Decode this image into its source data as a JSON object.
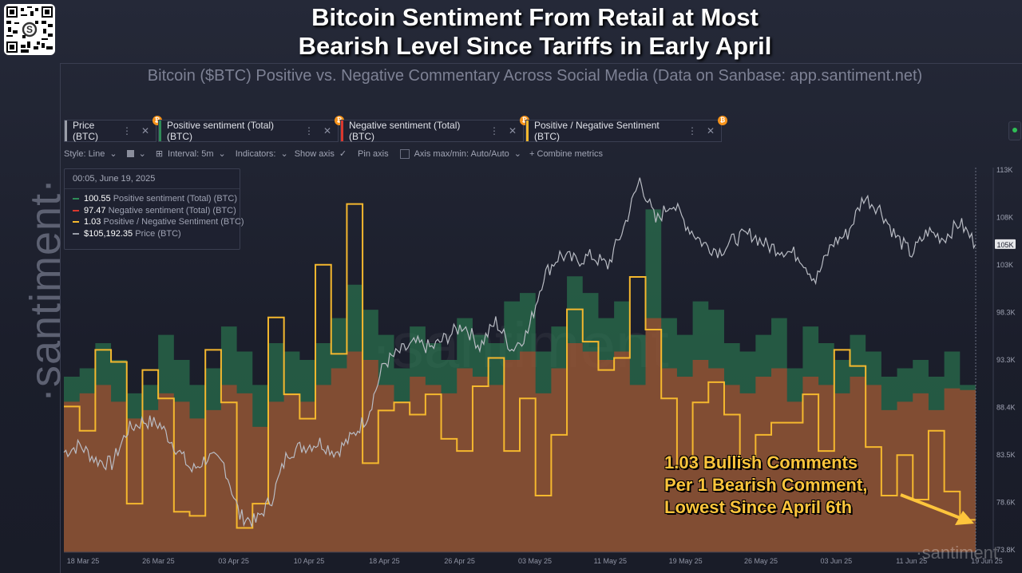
{
  "header": {
    "title_line1": "Bitcoin Sentiment From Retail at Most",
    "title_line2": "Bearish Level Since Tariffs in Early April",
    "subtitle": "Bitcoin ($BTC) Positive vs. Negative Commentary Across Social Media (Data on Sanbase: app.santiment.net)"
  },
  "brand": {
    "side_logo": "·santiment·",
    "watermark": "·santiment"
  },
  "tabs": [
    {
      "label": "Price (BTC)",
      "color": "#9a9ea8"
    },
    {
      "label": "Positive sentiment (Total) (BTC)",
      "color": "#2e8b57"
    },
    {
      "label": "Negative sentiment (Total) (BTC)",
      "color": "#d9382e"
    },
    {
      "label": "Positive / Negative Sentiment (BTC)",
      "color": "#f5b82e"
    }
  ],
  "tab_icons": {
    "menu": "⋮",
    "close": "✕",
    "badge": "₿"
  },
  "toolbar": {
    "style": "Style: Line",
    "interval": "Interval: 5m",
    "indicators": "Indicators:",
    "show_axis": "Show axis",
    "pin_axis": "Pin axis",
    "axis_maxmin": "Axis max/min: Auto/Auto",
    "combine": "+  Combine metrics"
  },
  "tooltip": {
    "date": "00:05, June 19, 2025",
    "rows": [
      {
        "value": "100.55",
        "label": "Positive sentiment (Total) (BTC)",
        "color": "#2e8b57"
      },
      {
        "value": "97.47",
        "label": "Negative sentiment (Total) (BTC)",
        "color": "#d9382e"
      },
      {
        "value": "1.03",
        "label": "Positive / Negative Sentiment (BTC)",
        "color": "#f5b82e"
      },
      {
        "value": "$105,192.35",
        "label": "Price (BTC)",
        "color": "#9a9ea8"
      }
    ]
  },
  "annotation": {
    "line1": "1.03 Bullish Comments",
    "line2": "Per 1 Bearish Comment,",
    "line3": "Lowest Since April 6th"
  },
  "colors": {
    "positive": "#2e8b57",
    "negative": "#c0462a",
    "ratio": "#f5b82e",
    "price": "#b9bcc4",
    "annotation": "#fec53c"
  },
  "chart_data": {
    "type": "line",
    "x_ticks": [
      "18 Mar 25",
      "26 Mar 25",
      "03 Apr 25",
      "10 Apr 25",
      "18 Apr 25",
      "26 Apr 25",
      "03 May 25",
      "11 May 25",
      "19 May 25",
      "26 May 25",
      "03 Jun 25",
      "11 Jun 25",
      "19 Jun 25"
    ],
    "y_ticks": [
      "113K",
      "108K",
      "103K",
      "98.3K",
      "93.3K",
      "88.4K",
      "83.5K",
      "78.6K",
      "73.8K"
    ],
    "current_price_label": "105K",
    "ylim": [
      73800,
      113000
    ],
    "series": [
      {
        "name": "Price (BTC)",
        "values": [
          84000,
          84700,
          83200,
          82800,
          86300,
          87200,
          86800,
          84500,
          82100,
          83500,
          82800,
          77500,
          76900,
          79300,
          84000,
          84600,
          85000,
          84000,
          85500,
          87800,
          93000,
          94200,
          95100,
          94600,
          95800,
          97000,
          94800,
          97300,
          94500,
          96200,
          102000,
          104100,
          103500,
          104000,
          103000,
          106900,
          111800,
          107500,
          109500,
          107000,
          105200,
          104500,
          105800,
          106200,
          105000,
          104600,
          104000,
          101500,
          105200,
          106300,
          110000,
          108800,
          106000,
          104200,
          106500,
          105800,
          107400,
          105200
        ]
      },
      {
        "name": "Positive sentiment (Total) (BTC)",
        "values": [
          105,
          110,
          125,
          115,
          95,
          100,
          130,
          115,
          100,
          110,
          135,
          120,
          100,
          125,
          120,
          115,
          125,
          140,
          160,
          145,
          130,
          110,
          135,
          125,
          115,
          140,
          130,
          125,
          150,
          155,
          120,
          135,
          165,
          155,
          140,
          150,
          130,
          205,
          140,
          130,
          150,
          145,
          125,
          120,
          130,
          140,
          110,
          135,
          125,
          115,
          130,
          120,
          105,
          110,
          115,
          105,
          120,
          100
        ]
      },
      {
        "name": "Negative sentiment (Total) (BTC)",
        "values": [
          90,
          95,
          100,
          90,
          80,
          85,
          95,
          90,
          80,
          85,
          100,
          95,
          75,
          90,
          95,
          90,
          100,
          110,
          120,
          115,
          100,
          90,
          105,
          100,
          95,
          110,
          105,
          100,
          115,
          120,
          95,
          110,
          125,
          120,
          115,
          120,
          100,
          140,
          110,
          105,
          115,
          110,
          100,
          95,
          105,
          110,
          90,
          105,
          100,
          95,
          105,
          100,
          85,
          90,
          95,
          85,
          98,
          97
        ]
      },
      {
        "name": "Positive / Negative Sentiment (BTC)",
        "values": [
          1.31,
          1.25,
          1.45,
          1.42,
          1.07,
          1.4,
          1.33,
          1.05,
          1.04,
          1.45,
          1.32,
          1.01,
          1.07,
          1.53,
          1.34,
          1.28,
          1.66,
          1.44,
          1.81,
          1.17,
          1.3,
          1.32,
          1.29,
          1.34,
          1.23,
          1.2,
          1.36,
          1.43,
          1.2,
          1.33,
          1.09,
          1.24,
          1.55,
          1.47,
          1.4,
          1.43,
          1.63,
          1.5,
          1.33,
          1.16,
          1.32,
          1.37,
          1.29,
          1.18,
          1.24,
          1.27,
          1.27,
          1.34,
          1.2,
          1.45,
          1.41,
          1.21,
          1.09,
          1.19,
          1.08,
          1.25,
          1.1,
          1.03
        ]
      }
    ],
    "grid": false,
    "legend": "top-left"
  }
}
